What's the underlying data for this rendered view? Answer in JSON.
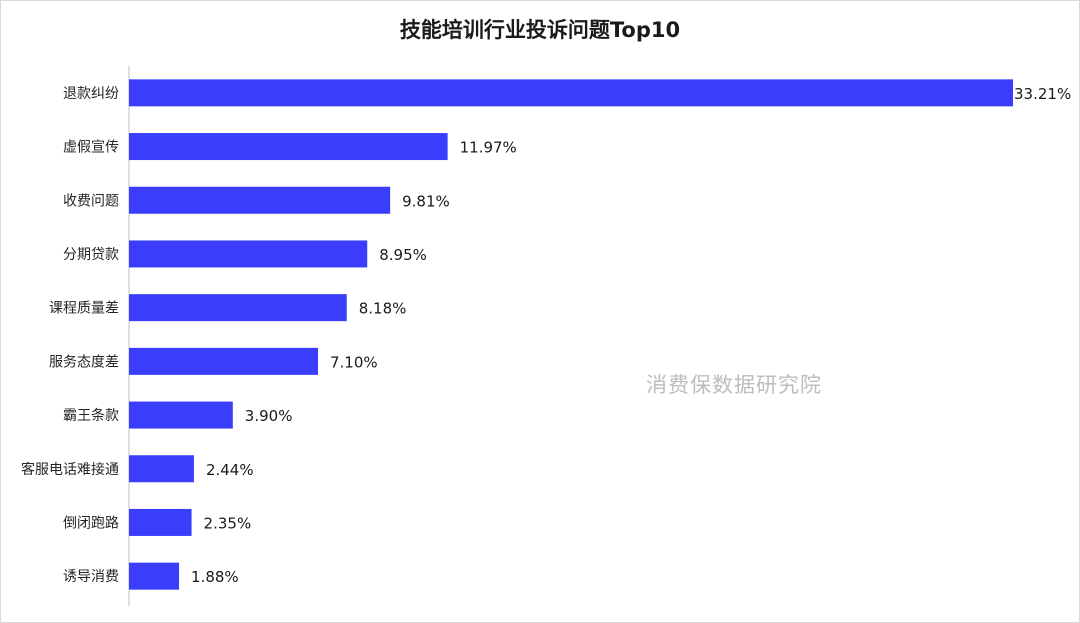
{
  "chart_data": {
    "type": "bar",
    "orientation": "horizontal",
    "title": "技能培训行业投诉问题Top10",
    "xlabel": "",
    "ylabel": "",
    "categories": [
      "退款纠纷",
      "虚假宣传",
      "收费问题",
      "分期贷款",
      "课程质量差",
      "服务态度差",
      "霸王条款",
      "客服电话难接通",
      "倒闭跑路",
      "诱导消费"
    ],
    "values": [
      33.21,
      11.97,
      9.81,
      8.95,
      8.18,
      7.1,
      3.9,
      2.44,
      2.35,
      1.88
    ],
    "value_labels": [
      "33.21%",
      "11.97%",
      "9.81%",
      "8.95%",
      "8.18%",
      "7.10%",
      "3.90%",
      "2.44%",
      "2.35%",
      "1.88%"
    ],
    "xlim": [
      0,
      33.21
    ],
    "grid": false,
    "legend": "none",
    "bar_color": "#3a3dfb"
  },
  "watermark": "消费保数据研究院"
}
